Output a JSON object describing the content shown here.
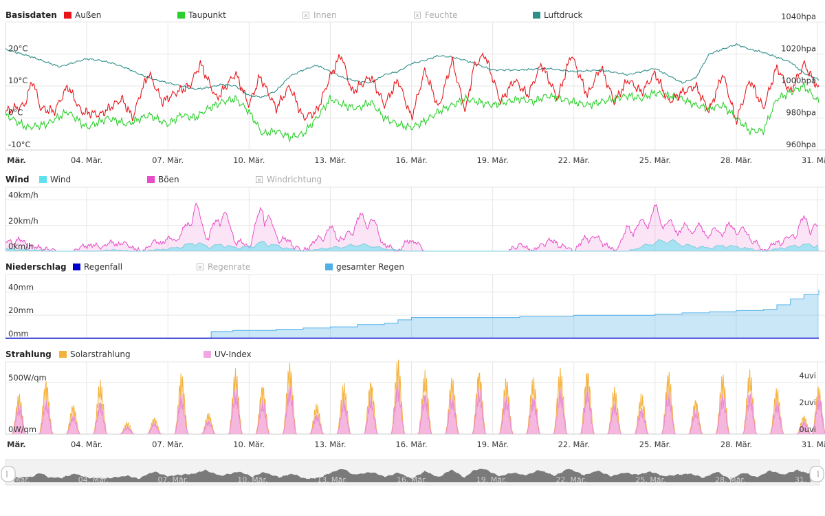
{
  "colors": {
    "aussen": "#e8161b",
    "taupunkt": "#2ccf2c",
    "luftdruck": "#2e8f8a",
    "wind": "#5ee0ee",
    "boeen": "#e84cc8",
    "regenfall": "#0000cc",
    "gesamter_regen": "#4fb0e8",
    "solar": "#f5b13c",
    "uv": "#f3a6e2",
    "grid": "#e6e6e6",
    "navigator": "#7a7a7a"
  },
  "x_axis": {
    "labels": [
      "Mär.",
      "04. Mär.",
      "07. Mär.",
      "10. Mär.",
      "13. Mär.",
      "16. Mär.",
      "19. Mär.",
      "22. Mär.",
      "25. Mär.",
      "28. Mär.",
      "31. Mär."
    ],
    "days": [
      1,
      4,
      7,
      10,
      13,
      16,
      19,
      22,
      25,
      28,
      31
    ],
    "range_days": [
      1,
      31.05
    ]
  },
  "chart_data": [
    {
      "type": "line",
      "title": "Basisdaten",
      "legend": [
        {
          "name": "Außen",
          "color": "#e8161b",
          "active": true
        },
        {
          "name": "Taupunkt",
          "color": "#2ccf2c",
          "active": true
        },
        {
          "name": "Innen",
          "color": "",
          "active": false
        },
        {
          "name": "Feuchte",
          "color": "",
          "active": false
        },
        {
          "name": "Luftdruck",
          "color": "#2e8f8a",
          "active": true
        }
      ],
      "y_left": {
        "ticks": [
          "20°C",
          "10°C",
          "0°C",
          "-10°C"
        ],
        "values": [
          20,
          10,
          0,
          -10
        ],
        "range": [
          -10,
          30
        ]
      },
      "y_right": {
        "ticks": [
          "1040hpa",
          "1020hpa",
          "1000hpa",
          "980hpa",
          "960hpa"
        ],
        "values": [
          1040,
          1020,
          1000,
          980,
          960
        ],
        "range": [
          960,
          1040
        ]
      },
      "series": [
        {
          "name": "Außen",
          "x": [
            1,
            1.7,
            2,
            2.3,
            2.8,
            3.3,
            3.8,
            4.5,
            5.3,
            5.7,
            6,
            6.3,
            6.8,
            7.3,
            7.8,
            8.2,
            8.8,
            9.5,
            10,
            10.4,
            11,
            11.5,
            12,
            12.5,
            13,
            13.4,
            13.8,
            14.5,
            15,
            15.5,
            16,
            16.5,
            17,
            17.5,
            18,
            18.3,
            18.7,
            19.3,
            19.8,
            20.3,
            20.8,
            21.4,
            21.9,
            22.5,
            23,
            23.5,
            24,
            24.5,
            25,
            25.5,
            26,
            26.5,
            27,
            27.5,
            28,
            28.5,
            29,
            29.5,
            30,
            30.5,
            31.05
          ],
          "values": [
            2,
            4,
            12,
            3,
            2,
            10,
            2,
            1,
            6,
            0,
            8,
            14,
            5,
            8,
            10,
            17,
            6,
            14,
            4,
            13,
            3,
            10,
            0,
            2,
            13,
            20,
            8,
            13,
            4,
            12,
            0,
            15,
            3,
            18,
            2,
            16,
            20,
            5,
            12,
            7,
            17,
            6,
            20,
            7,
            16,
            5,
            12,
            8,
            14,
            5,
            8,
            10,
            2,
            14,
            -1,
            12,
            3,
            16,
            8,
            17,
            9
          ]
        },
        {
          "name": "Taupunkt",
          "x": [
            1,
            1.8,
            2.5,
            3.3,
            4,
            4.8,
            5.5,
            6.3,
            7,
            7.5,
            8,
            8.5,
            9,
            9.5,
            10,
            10.5,
            11,
            11.5,
            12,
            12.5,
            13,
            13.5,
            14,
            14.5,
            15,
            15.5,
            16,
            16.5,
            17,
            17.5,
            18,
            18.5,
            19,
            19.5,
            20,
            20.5,
            21,
            21.5,
            22,
            22.5,
            23,
            23.5,
            24,
            24.5,
            25,
            25.5,
            26,
            26.5,
            27,
            27.5,
            28,
            28.5,
            29,
            29.5,
            30,
            30.5,
            31.05
          ],
          "values": [
            1,
            -3,
            -2,
            2,
            -3,
            0,
            -2,
            1,
            -2,
            1,
            0,
            3,
            5,
            6,
            2,
            -5,
            -4,
            -6,
            -5,
            0,
            6,
            4,
            3,
            5,
            0,
            -2,
            -3,
            -1,
            2,
            4,
            6,
            5,
            4,
            5,
            6,
            5,
            7,
            6,
            5,
            4,
            5,
            6,
            7,
            6,
            8,
            7,
            6,
            4,
            3,
            4,
            0,
            -4,
            -4,
            6,
            8,
            10,
            5
          ]
        },
        {
          "name": "Luftdruck",
          "x": [
            1,
            2,
            3,
            4,
            4.5,
            5,
            5.5,
            6,
            6.5,
            7,
            7.5,
            8,
            8.5,
            9,
            9.5,
            10,
            10.5,
            11,
            11.5,
            12,
            12.5,
            13,
            13.5,
            14,
            14.5,
            15,
            15.5,
            16,
            16.5,
            17,
            17.5,
            18,
            19,
            20,
            21,
            22,
            23,
            24,
            25,
            26,
            26.5,
            27,
            27.5,
            28,
            28.5,
            29,
            29.5,
            30,
            30.5,
            31.05
          ],
          "values": [
            1023,
            1018,
            1012,
            1017,
            1016,
            1014,
            1011,
            1007,
            1004,
            1002,
            1000,
            998,
            999,
            1001,
            1000,
            994,
            993,
            997,
            1006,
            1010,
            1013,
            1009,
            1005,
            1003,
            1002,
            1007,
            1009,
            1014,
            1016,
            1019,
            1018,
            1016,
            1010,
            1010,
            1011,
            1009,
            1010,
            1007,
            1011,
            1002,
            1005,
            1020,
            1023,
            1026,
            1023,
            1021,
            1018,
            1015,
            1008,
            1004
          ]
        }
      ]
    },
    {
      "type": "area",
      "title": "Wind",
      "legend": [
        {
          "name": "Wind",
          "color": "#5ee0ee",
          "active": true
        },
        {
          "name": "Böen",
          "color": "#e84cc8",
          "active": true
        },
        {
          "name": "Windrichtung",
          "color": "",
          "active": false
        }
      ],
      "y": {
        "ticks": [
          "40km/h",
          "20km/h",
          "0km/h"
        ],
        "values": [
          40,
          20,
          0
        ],
        "range": [
          0,
          50
        ]
      },
      "series": [
        {
          "name": "Böen",
          "x": [
            1,
            1.5,
            2,
            2.5,
            3,
            3.5,
            4,
            4.5,
            5,
            5.5,
            6,
            6.5,
            7,
            7.5,
            8,
            8.5,
            9,
            9.5,
            10,
            10.5,
            11,
            11.5,
            12,
            12.5,
            13,
            13.5,
            14,
            14.5,
            15,
            15.5,
            16,
            16.5,
            17,
            17.5,
            18,
            18.5,
            19,
            19.5,
            20,
            20.5,
            21,
            21.5,
            22,
            22.5,
            23,
            23.5,
            24,
            24.5,
            25,
            25.5,
            26,
            26.5,
            27,
            27.5,
            28,
            28.5,
            29,
            29.5,
            30,
            30.5,
            31.05
          ],
          "values": [
            8,
            10,
            4,
            2,
            0,
            0,
            6,
            4,
            8,
            6,
            0,
            8,
            10,
            14,
            40,
            12,
            38,
            10,
            4,
            42,
            14,
            8,
            0,
            10,
            20,
            10,
            28,
            30,
            6,
            0,
            12,
            0,
            0,
            0,
            0,
            0,
            0,
            0,
            6,
            0,
            10,
            6,
            0,
            14,
            10,
            0,
            20,
            24,
            36,
            24,
            20,
            22,
            16,
            20,
            22,
            14,
            0,
            8,
            12,
            28,
            20
          ]
        },
        {
          "name": "Wind",
          "x": [
            1,
            2,
            3,
            4,
            5,
            6,
            7,
            7.5,
            8,
            8.5,
            9,
            9.5,
            10,
            10.5,
            11,
            11.5,
            12,
            13,
            13.5,
            14,
            14.5,
            15,
            16,
            17,
            24,
            24.5,
            25,
            25.5,
            26,
            26.5,
            27,
            27.5,
            28,
            28.5,
            29,
            29.5,
            30,
            30.5,
            31.05
          ],
          "values": [
            2,
            1,
            0,
            0,
            1,
            0,
            2,
            4,
            8,
            4,
            6,
            3,
            4,
            8,
            5,
            2,
            0,
            3,
            4,
            6,
            5,
            2,
            0,
            0,
            0,
            4,
            8,
            10,
            6,
            4,
            3,
            5,
            4,
            2,
            0,
            2,
            4,
            6,
            5
          ]
        }
      ]
    },
    {
      "type": "area",
      "title": "Niederschlag",
      "legend": [
        {
          "name": "Regenfall",
          "color": "#0000cc",
          "active": true
        },
        {
          "name": "Regenrate",
          "color": "",
          "active": false
        },
        {
          "name": "gesamter Regen",
          "color": "#4fb0e8",
          "active": true
        }
      ],
      "y": {
        "ticks": [
          "40mm",
          "20mm",
          "0mm"
        ],
        "values": [
          40,
          20,
          0
        ],
        "range": [
          0,
          55
        ]
      },
      "series": [
        {
          "name": "gesamter Regen",
          "x": [
            1,
            8.4,
            8.6,
            9.3,
            9.4,
            11,
            12,
            13,
            14,
            15,
            15.5,
            16,
            18,
            20,
            22,
            24,
            25,
            26,
            27,
            28,
            29,
            29.5,
            30,
            30.5,
            31.05
          ],
          "values": [
            0,
            0,
            6,
            6,
            7,
            8,
            9,
            10,
            12,
            13,
            16,
            18,
            18,
            19,
            20,
            20,
            21,
            22,
            23,
            24,
            25,
            29,
            34,
            38,
            42
          ]
        },
        {
          "name": "Regenfall",
          "x": [
            1,
            31.05
          ],
          "values": [
            0,
            0
          ]
        }
      ]
    },
    {
      "type": "area",
      "title": "Strahlung",
      "legend": [
        {
          "name": "Solarstrahlung",
          "color": "#f5b13c",
          "active": true
        },
        {
          "name": "UV-Index",
          "color": "#f3a6e2",
          "active": true
        }
      ],
      "y_left": {
        "ticks": [
          "500W/qm",
          "0W/qm"
        ],
        "values": [
          500,
          0
        ],
        "range": [
          0,
          700
        ]
      },
      "y_right": {
        "ticks": [
          "4uvi",
          "2uvi",
          "0uvi"
        ],
        "values": [
          4,
          2,
          0
        ],
        "range": [
          0,
          5.4
        ]
      },
      "series": [
        {
          "name": "Solarstrahlung",
          "x": [
            1.5,
            2.5,
            3.5,
            4.5,
            5.5,
            6.5,
            7.5,
            8.5,
            9.5,
            10.5,
            11.5,
            12.5,
            13.5,
            14.5,
            15.5,
            16.5,
            17.5,
            18.5,
            19.5,
            20.5,
            21.5,
            22.5,
            23.5,
            24.5,
            25.5,
            26.5,
            27.5,
            28.5,
            29.5,
            30.5,
            31.05
          ],
          "values": [
            400,
            550,
            300,
            530,
            120,
            170,
            620,
            210,
            650,
            510,
            720,
            300,
            510,
            550,
            760,
            620,
            570,
            660,
            560,
            560,
            660,
            670,
            470,
            400,
            630,
            360,
            600,
            630,
            470,
            190,
            470
          ]
        },
        {
          "name": "UV-Index",
          "x": [
            1.5,
            2.5,
            3.5,
            4.5,
            5.5,
            6.5,
            7.5,
            8.5,
            9.5,
            10.5,
            11.5,
            12.5,
            13.5,
            14.5,
            15.5,
            16.5,
            17.5,
            18.5,
            19.5,
            20.5,
            21.5,
            22.5,
            23.5,
            24.5,
            25.5,
            26.5,
            27.5,
            28.5,
            29.5,
            30.5,
            31.05
          ],
          "values": [
            2.3,
            2.6,
            1.5,
            2.6,
            0.6,
            0.9,
            3.1,
            1.1,
            3.5,
            2.6,
            3.8,
            1.6,
            2.7,
            2.9,
            4.0,
            3.3,
            3.0,
            3.5,
            3.0,
            3.0,
            3.5,
            3.6,
            2.5,
            2.1,
            3.3,
            1.9,
            3.2,
            3.3,
            2.5,
            1.0,
            3.0
          ]
        }
      ]
    }
  ]
}
